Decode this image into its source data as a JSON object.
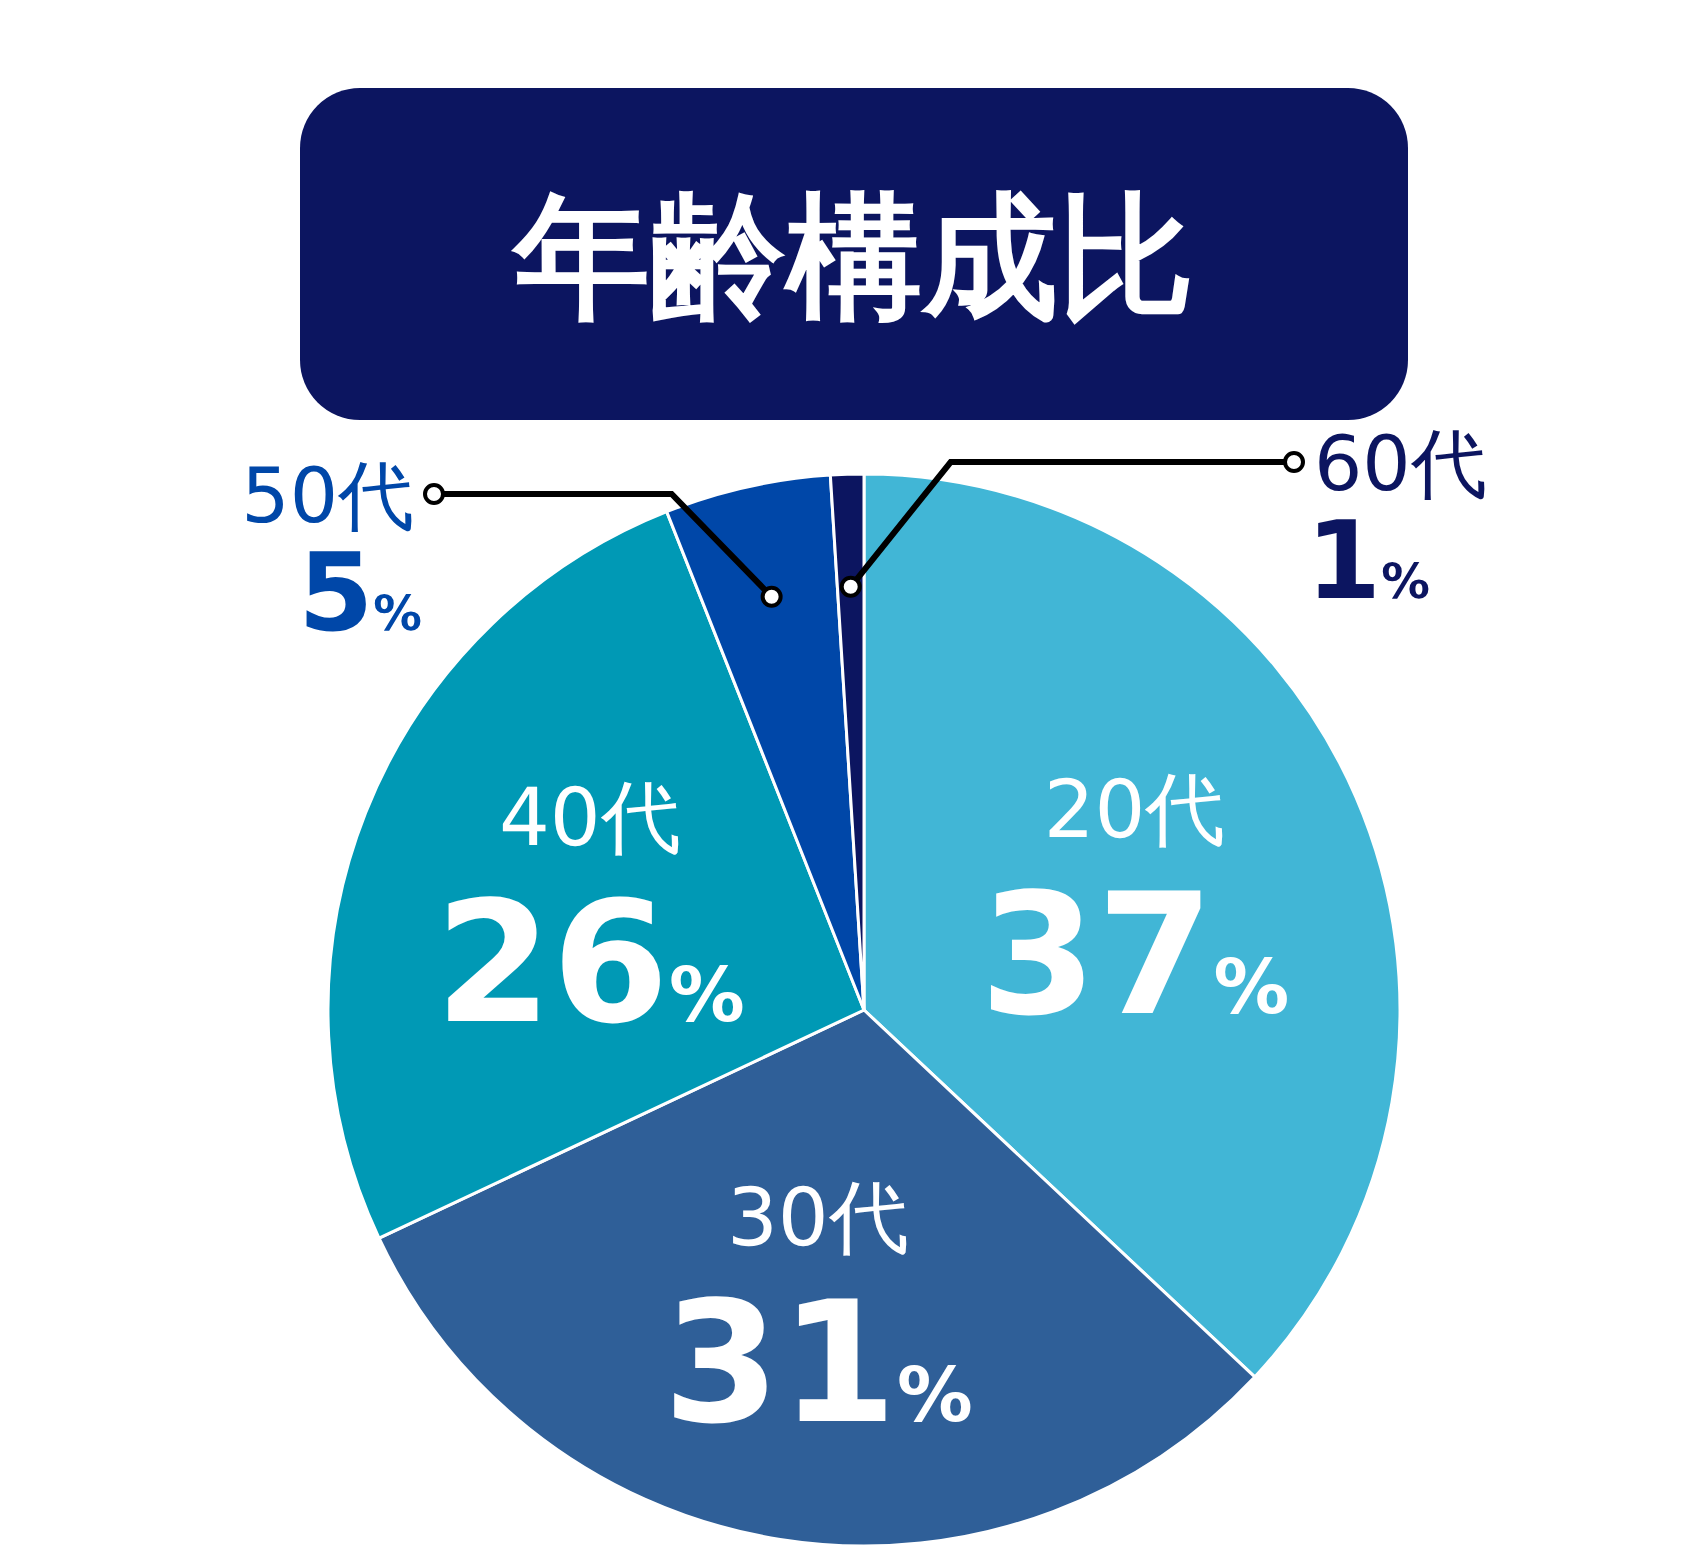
{
  "chart_data": {
    "type": "pie",
    "title": "年齢構成比",
    "categories": [
      "20代",
      "30代",
      "40代",
      "50代",
      "60代"
    ],
    "values": [
      37,
      31,
      26,
      5,
      1
    ],
    "value_labels": [
      "37%",
      "31%",
      "26%",
      "5%",
      "1%"
    ],
    "colors": [
      "#41b6d6",
      "#2f5f98",
      "#0099b5",
      "#0047a8",
      "#0c1560"
    ]
  }
}
